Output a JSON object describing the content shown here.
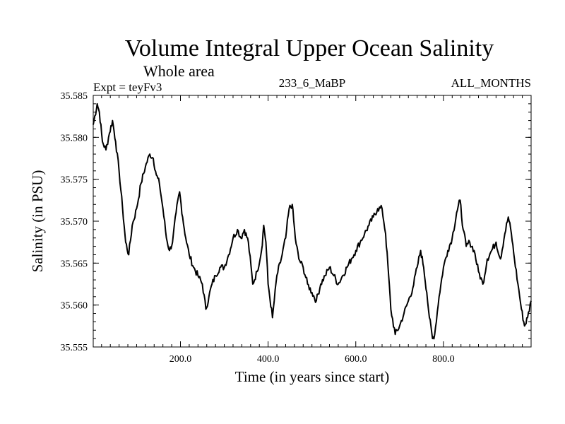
{
  "chart_data": {
    "type": "line",
    "title": "Volume Integral Upper Ocean Salinity",
    "subtitle": "Whole area",
    "experiment_label": "Expt = teyFv3",
    "period_label": "233_6_MaBP",
    "months_label": "ALL_MONTHS",
    "xlabel": "Time (in years since start)",
    "ylabel": "Salinity (in PSU)",
    "xlim": [
      1,
      1000
    ],
    "ylim": [
      35.555,
      35.585
    ],
    "x_ticks": [
      200,
      400,
      600,
      800
    ],
    "x_tick_labels": [
      "200.0",
      "400.0",
      "600.0",
      "800.0"
    ],
    "y_ticks": [
      35.555,
      35.56,
      35.565,
      35.57,
      35.575,
      35.58,
      35.585
    ],
    "y_tick_labels": [
      "35.555",
      "35.560",
      "35.565",
      "35.570",
      "35.575",
      "35.580",
      "35.585"
    ],
    "grid": false,
    "series": [
      {
        "name": "salinity",
        "x": [
          1,
          10,
          15,
          22,
          30,
          38,
          45,
          52,
          60,
          68,
          75,
          82,
          90,
          100,
          110,
          120,
          130,
          138,
          145,
          152,
          160,
          168,
          175,
          182,
          190,
          198,
          205,
          212,
          220,
          230,
          240,
          250,
          258,
          265,
          272,
          280,
          290,
          300,
          310,
          320,
          330,
          338,
          346,
          355,
          365,
          375,
          385,
          390,
          395,
          400,
          410,
          420,
          430,
          440,
          448,
          455,
          462,
          470,
          480,
          490,
          500,
          510,
          520,
          530,
          540,
          550,
          560,
          570,
          580,
          590,
          600,
          610,
          620,
          630,
          640,
          650,
          660,
          668,
          675,
          680,
          690,
          700,
          710,
          720,
          730,
          740,
          748,
          755,
          762,
          768,
          775,
          780,
          790,
          800,
          810,
          820,
          830,
          838,
          845,
          852,
          860,
          870,
          880,
          890,
          900,
          910,
          920,
          930,
          940,
          948,
          955,
          962,
          970,
          978,
          985,
          992,
          1000
        ],
        "values": [
          35.5815,
          35.584,
          35.583,
          35.5795,
          35.5785,
          35.5805,
          35.582,
          35.5795,
          35.576,
          35.5715,
          35.5675,
          35.566,
          35.5695,
          35.5715,
          35.5745,
          35.5765,
          35.578,
          35.5775,
          35.5755,
          35.5745,
          35.5715,
          35.568,
          35.5665,
          35.5675,
          35.571,
          35.5735,
          35.5705,
          35.568,
          35.566,
          35.5645,
          35.5635,
          35.5625,
          35.5595,
          35.561,
          35.5625,
          35.5635,
          35.5645,
          35.5645,
          35.566,
          35.568,
          35.569,
          35.568,
          35.569,
          35.5675,
          35.5625,
          35.564,
          35.5665,
          35.5695,
          35.5675,
          35.5625,
          35.5585,
          35.5635,
          35.5655,
          35.568,
          35.5715,
          35.572,
          35.568,
          35.5655,
          35.5645,
          35.5625,
          35.5615,
          35.5605,
          35.5625,
          35.5635,
          35.5645,
          35.5635,
          35.5625,
          35.5635,
          35.5645,
          35.5655,
          35.5665,
          35.5675,
          35.5685,
          35.5695,
          35.5705,
          35.5715,
          35.5715,
          35.5685,
          35.5635,
          35.5595,
          35.5565,
          35.5575,
          35.559,
          35.5605,
          35.562,
          35.5645,
          35.5665,
          35.5645,
          35.5615,
          35.5585,
          35.556,
          35.5565,
          35.561,
          35.5645,
          35.5665,
          35.568,
          35.571,
          35.5725,
          35.569,
          35.567,
          35.5675,
          35.5665,
          35.564,
          35.5625,
          35.5655,
          35.5665,
          35.5675,
          35.5655,
          35.5685,
          35.5705,
          35.5685,
          35.5655,
          35.5625,
          35.5595,
          35.5575,
          35.5585,
          35.5605
        ]
      }
    ]
  }
}
